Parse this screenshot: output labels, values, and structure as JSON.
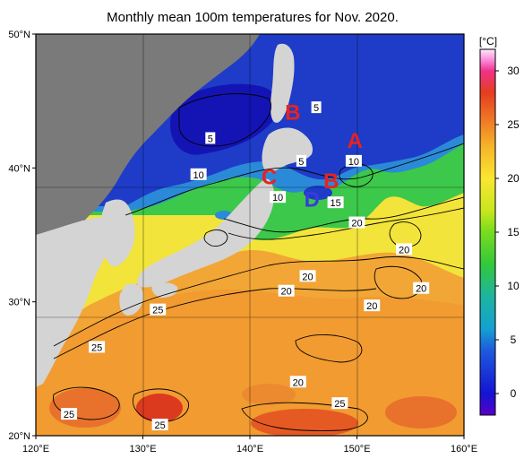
{
  "title": "Monthly mean 100m temperatures for Nov. 2020.",
  "map": {
    "lat_ticks": [
      {
        "value": 50,
        "label": "50°N"
      },
      {
        "value": 40,
        "label": "40°N"
      },
      {
        "value": 30,
        "label": "30°N"
      },
      {
        "value": 20,
        "label": "20°N"
      }
    ],
    "lon_ticks": [
      {
        "value": 120,
        "label": "120°E"
      },
      {
        "value": 130,
        "label": "130°E"
      },
      {
        "value": 140,
        "label": "140°E"
      },
      {
        "value": 150,
        "label": "150°E"
      },
      {
        "value": 160,
        "label": "160°E"
      }
    ],
    "contour_labels": [
      {
        "text": "5",
        "lon": 146.2,
        "lat": 44.5
      },
      {
        "text": "5",
        "lon": 136.3,
        "lat": 42.2
      },
      {
        "text": "5",
        "lon": 144.8,
        "lat": 40.5
      },
      {
        "text": "10",
        "lon": 149.7,
        "lat": 40.5
      },
      {
        "text": "10",
        "lon": 135.2,
        "lat": 39.5
      },
      {
        "text": "10",
        "lon": 142.6,
        "lat": 37.8
      },
      {
        "text": "15",
        "lon": 148.0,
        "lat": 37.4
      },
      {
        "text": "20",
        "lon": 150.0,
        "lat": 35.9
      },
      {
        "text": "20",
        "lon": 154.4,
        "lat": 33.9
      },
      {
        "text": "20",
        "lon": 145.4,
        "lat": 31.9
      },
      {
        "text": "20",
        "lon": 156.0,
        "lat": 31.0
      },
      {
        "text": "20",
        "lon": 143.4,
        "lat": 30.8
      },
      {
        "text": "20",
        "lon": 151.4,
        "lat": 29.7
      },
      {
        "text": "20",
        "lon": 144.5,
        "lat": 24.0
      },
      {
        "text": "25",
        "lon": 131.4,
        "lat": 29.4
      },
      {
        "text": "25",
        "lon": 125.7,
        "lat": 26.6
      },
      {
        "text": "25",
        "lon": 148.4,
        "lat": 22.4
      },
      {
        "text": "25",
        "lon": 123.1,
        "lat": 21.6
      },
      {
        "text": "25",
        "lon": 131.6,
        "lat": 20.8
      }
    ],
    "markers": [
      {
        "text": "A",
        "lon": 149.8,
        "lat": 42.1,
        "color": "#e8221c"
      },
      {
        "text": "B",
        "lon": 144.0,
        "lat": 44.2,
        "color": "#e8221c"
      },
      {
        "text": "B",
        "lon": 147.6,
        "lat": 39.1,
        "color": "#e8221c"
      },
      {
        "text": "C",
        "lon": 141.8,
        "lat": 39.4,
        "color": "#e8221c"
      },
      {
        "text": "D",
        "lon": 145.8,
        "lat": 37.7,
        "color": "#3a3adc"
      }
    ]
  },
  "colorbar": {
    "unit": "[°C]",
    "ticks": [
      {
        "value": 30,
        "label": "30"
      },
      {
        "value": 25,
        "label": "25"
      },
      {
        "value": 20,
        "label": "20"
      },
      {
        "value": 15,
        "label": "15"
      },
      {
        "value": 10,
        "label": "10"
      },
      {
        "value": 5,
        "label": "5"
      },
      {
        "value": 0,
        "label": "0"
      }
    ],
    "stops": [
      {
        "value": -2,
        "color": "#5a00c8"
      },
      {
        "value": 0,
        "color": "#1414d2"
      },
      {
        "value": 4,
        "color": "#1e5adc"
      },
      {
        "value": 6,
        "color": "#14a0d2"
      },
      {
        "value": 9,
        "color": "#1eb4a0"
      },
      {
        "value": 12,
        "color": "#32c83c"
      },
      {
        "value": 15,
        "color": "#78dc1e"
      },
      {
        "value": 17,
        "color": "#c8e61e"
      },
      {
        "value": 20,
        "color": "#fae632"
      },
      {
        "value": 23,
        "color": "#f5b428"
      },
      {
        "value": 25,
        "color": "#f08228"
      },
      {
        "value": 28,
        "color": "#e63c1e"
      },
      {
        "value": 30,
        "color": "#f0328c"
      },
      {
        "value": 31,
        "color": "#fa8cdc"
      },
      {
        "value": 32,
        "color": "#ffe6fa"
      }
    ]
  },
  "colors": {
    "land": "#d4d4d4",
    "land_far": "#7a7a7a",
    "cold": "#1e3cc8",
    "cool": "#2a8ad8",
    "green": "#3cc84a",
    "yellow": "#f2e43a",
    "orange": "#f2a636",
    "red_orange": "#e8722c",
    "warm_core": "#dc3a1e"
  }
}
